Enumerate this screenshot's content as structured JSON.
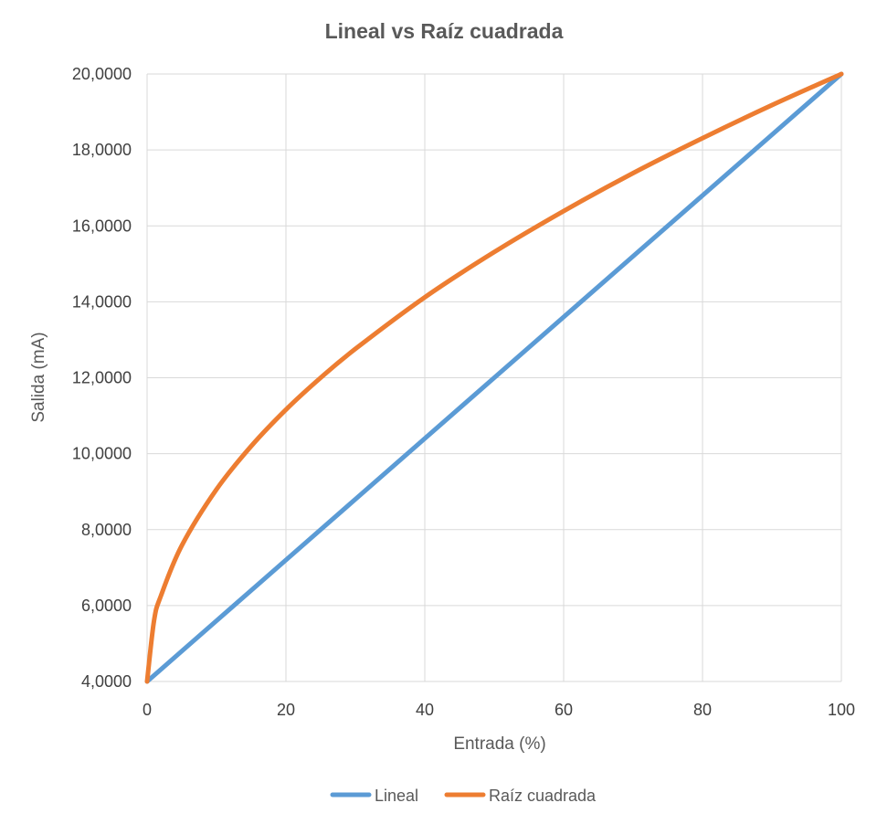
{
  "chart_data": {
    "type": "line",
    "title": "Lineal  vs  Raíz cuadrada",
    "xlabel": "Entrada (%)",
    "ylabel": "Salida (mA)",
    "xlim": [
      0,
      100
    ],
    "ylim": [
      4,
      20
    ],
    "x_ticks": [
      0,
      20,
      40,
      60,
      80,
      100
    ],
    "x_tick_labels": [
      "0",
      "20",
      "40",
      "60",
      "80",
      "100"
    ],
    "y_ticks": [
      4,
      6,
      8,
      10,
      12,
      14,
      16,
      18,
      20
    ],
    "y_tick_labels": [
      "4,0000",
      "6,0000",
      "8,0000",
      "10,0000",
      "12,0000",
      "14,0000",
      "16,0000",
      "18,0000",
      "20,0000"
    ],
    "grid": true,
    "legend_position": "bottom",
    "x": [
      0,
      1,
      2,
      5,
      10,
      15,
      20,
      25,
      30,
      40,
      50,
      60,
      70,
      80,
      90,
      100
    ],
    "series": [
      {
        "name": "Lineal",
        "color": "#5b9bd5",
        "values": [
          4.0,
          4.16,
          4.32,
          4.8,
          5.6,
          6.4,
          7.2,
          8.0,
          8.8,
          10.4,
          12.0,
          13.6,
          15.2,
          16.8,
          18.4,
          20.0
        ]
      },
      {
        "name": "Raíz cuadrada",
        "color": "#ed7d31",
        "values": [
          4.0,
          5.6,
          6.26,
          7.58,
          9.06,
          10.2,
          11.16,
          12.0,
          12.76,
          14.12,
          15.31,
          16.39,
          17.39,
          18.31,
          19.18,
          20.0
        ]
      }
    ]
  }
}
